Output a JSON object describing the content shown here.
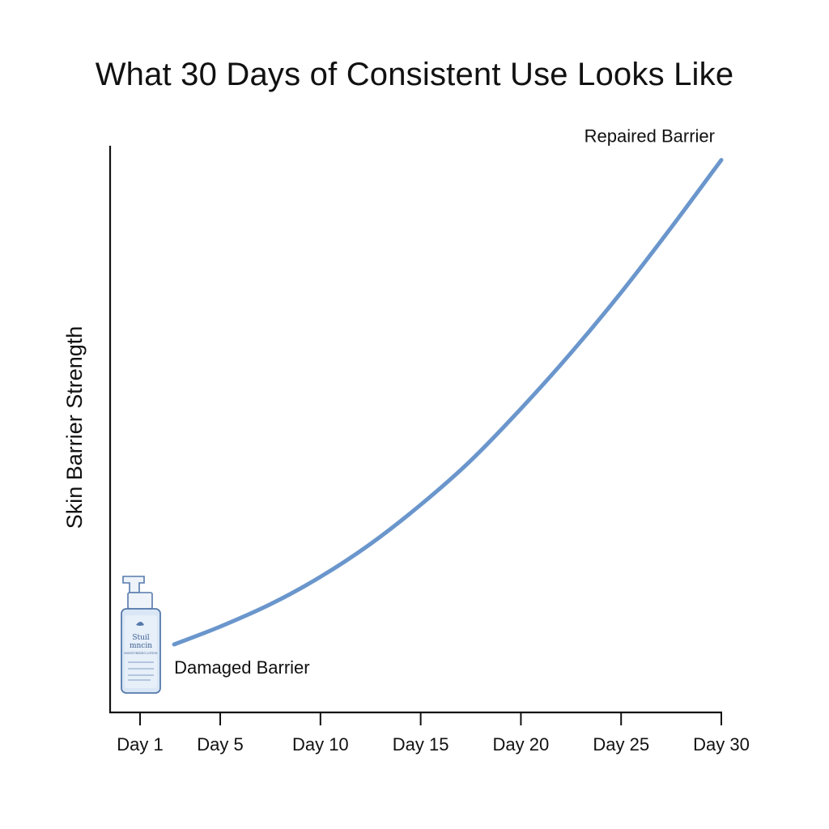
{
  "chart_data": {
    "type": "line",
    "title": "What 30 Days of Consistent Use Looks Like",
    "xlabel": "",
    "ylabel": "Skin Barrier Strength",
    "x_ticks": [
      1,
      5,
      10,
      15,
      20,
      25,
      30
    ],
    "x_tick_labels": [
      "Day 1",
      "Day 5",
      "Day 10",
      "Day 15",
      "Day 20",
      "Day 25",
      "Day 30"
    ],
    "xlim": [
      1,
      30
    ],
    "ylim": [
      0,
      100
    ],
    "y_ticks_shown": false,
    "grid": false,
    "legend": "none",
    "series": [
      {
        "color": "#6a96cc",
        "x": [
          2.7,
          5,
          7.5,
          10,
          12.5,
          15,
          17.5,
          20,
          22.5,
          25,
          27.5,
          30
        ],
        "y": [
          13.4,
          16.9,
          21.3,
          26.7,
          33.2,
          40.9,
          49.6,
          59.8,
          70.8,
          82.7,
          95.5,
          108.8
        ]
      }
    ],
    "annotations": [
      {
        "text": "Damaged Barrier",
        "x": 2.7,
        "y": 13.4
      },
      {
        "text": "Repaired Barrier",
        "x": 30,
        "y": 108.8
      }
    ],
    "decoration": {
      "name": "pump-bottle-icon",
      "label_line1": "Stuil",
      "label_line2": "mncin",
      "label_line3": "MOISTURIZING LOTION"
    }
  }
}
